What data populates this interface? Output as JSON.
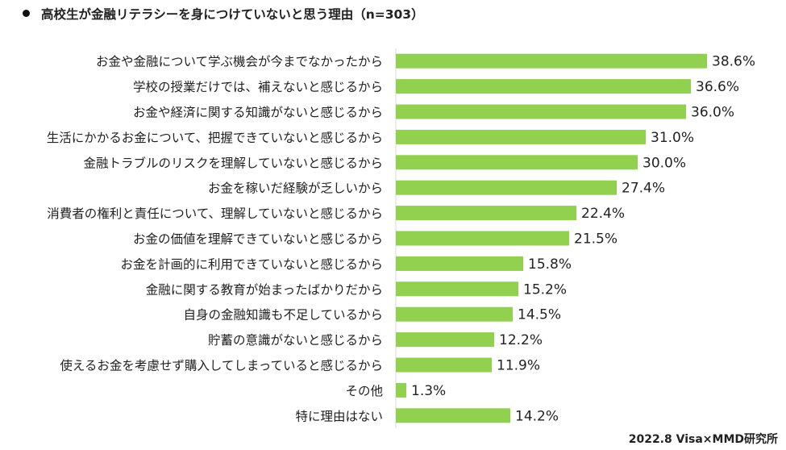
{
  "chart_data": {
    "type": "bar",
    "orientation": "horizontal",
    "title": "高校生が金融リテラシーを身につけていないと思う理由（n=303）",
    "source": "2022.8 Visa×MMD研究所",
    "xlabel": "",
    "ylabel": "",
    "xlim": [
      0,
      45
    ],
    "grid": false,
    "color": "#92d050",
    "categories": [
      "お金や金融について学ぶ機会が今までなかったから",
      "学校の授業だけでは、補えないと感じるから",
      "お金や経済に関する知識がないと感じるから",
      "生活にかかるお金について、把握できていないと感じるから",
      "金融トラブルのリスクを理解していないと感じるから",
      "お金を稼いだ経験が乏しいから",
      "消費者の権利と責任について、理解していないと感じるから",
      "お金の価値を理解できていないと感じるから",
      "お金を計画的に利用できていないと感じるから",
      "金融に関する教育が始まったばかりだから",
      "自身の金融知識も不足しているから",
      "貯蓄の意識がないと感じるから",
      "使えるお金を考慮せず購入してしまっていると感じるから",
      "その他",
      "特に理由はない"
    ],
    "values": [
      38.6,
      36.6,
      36.0,
      31.0,
      30.0,
      27.4,
      22.4,
      21.5,
      15.8,
      15.2,
      14.5,
      12.2,
      11.9,
      1.3,
      14.2
    ],
    "value_labels": [
      "38.6%",
      "36.6%",
      "36.0%",
      "31.0%",
      "30.0%",
      "27.4%",
      "22.4%",
      "21.5%",
      "15.8%",
      "15.2%",
      "14.5%",
      "12.2%",
      "11.9%",
      "1.3%",
      "14.2%"
    ]
  }
}
